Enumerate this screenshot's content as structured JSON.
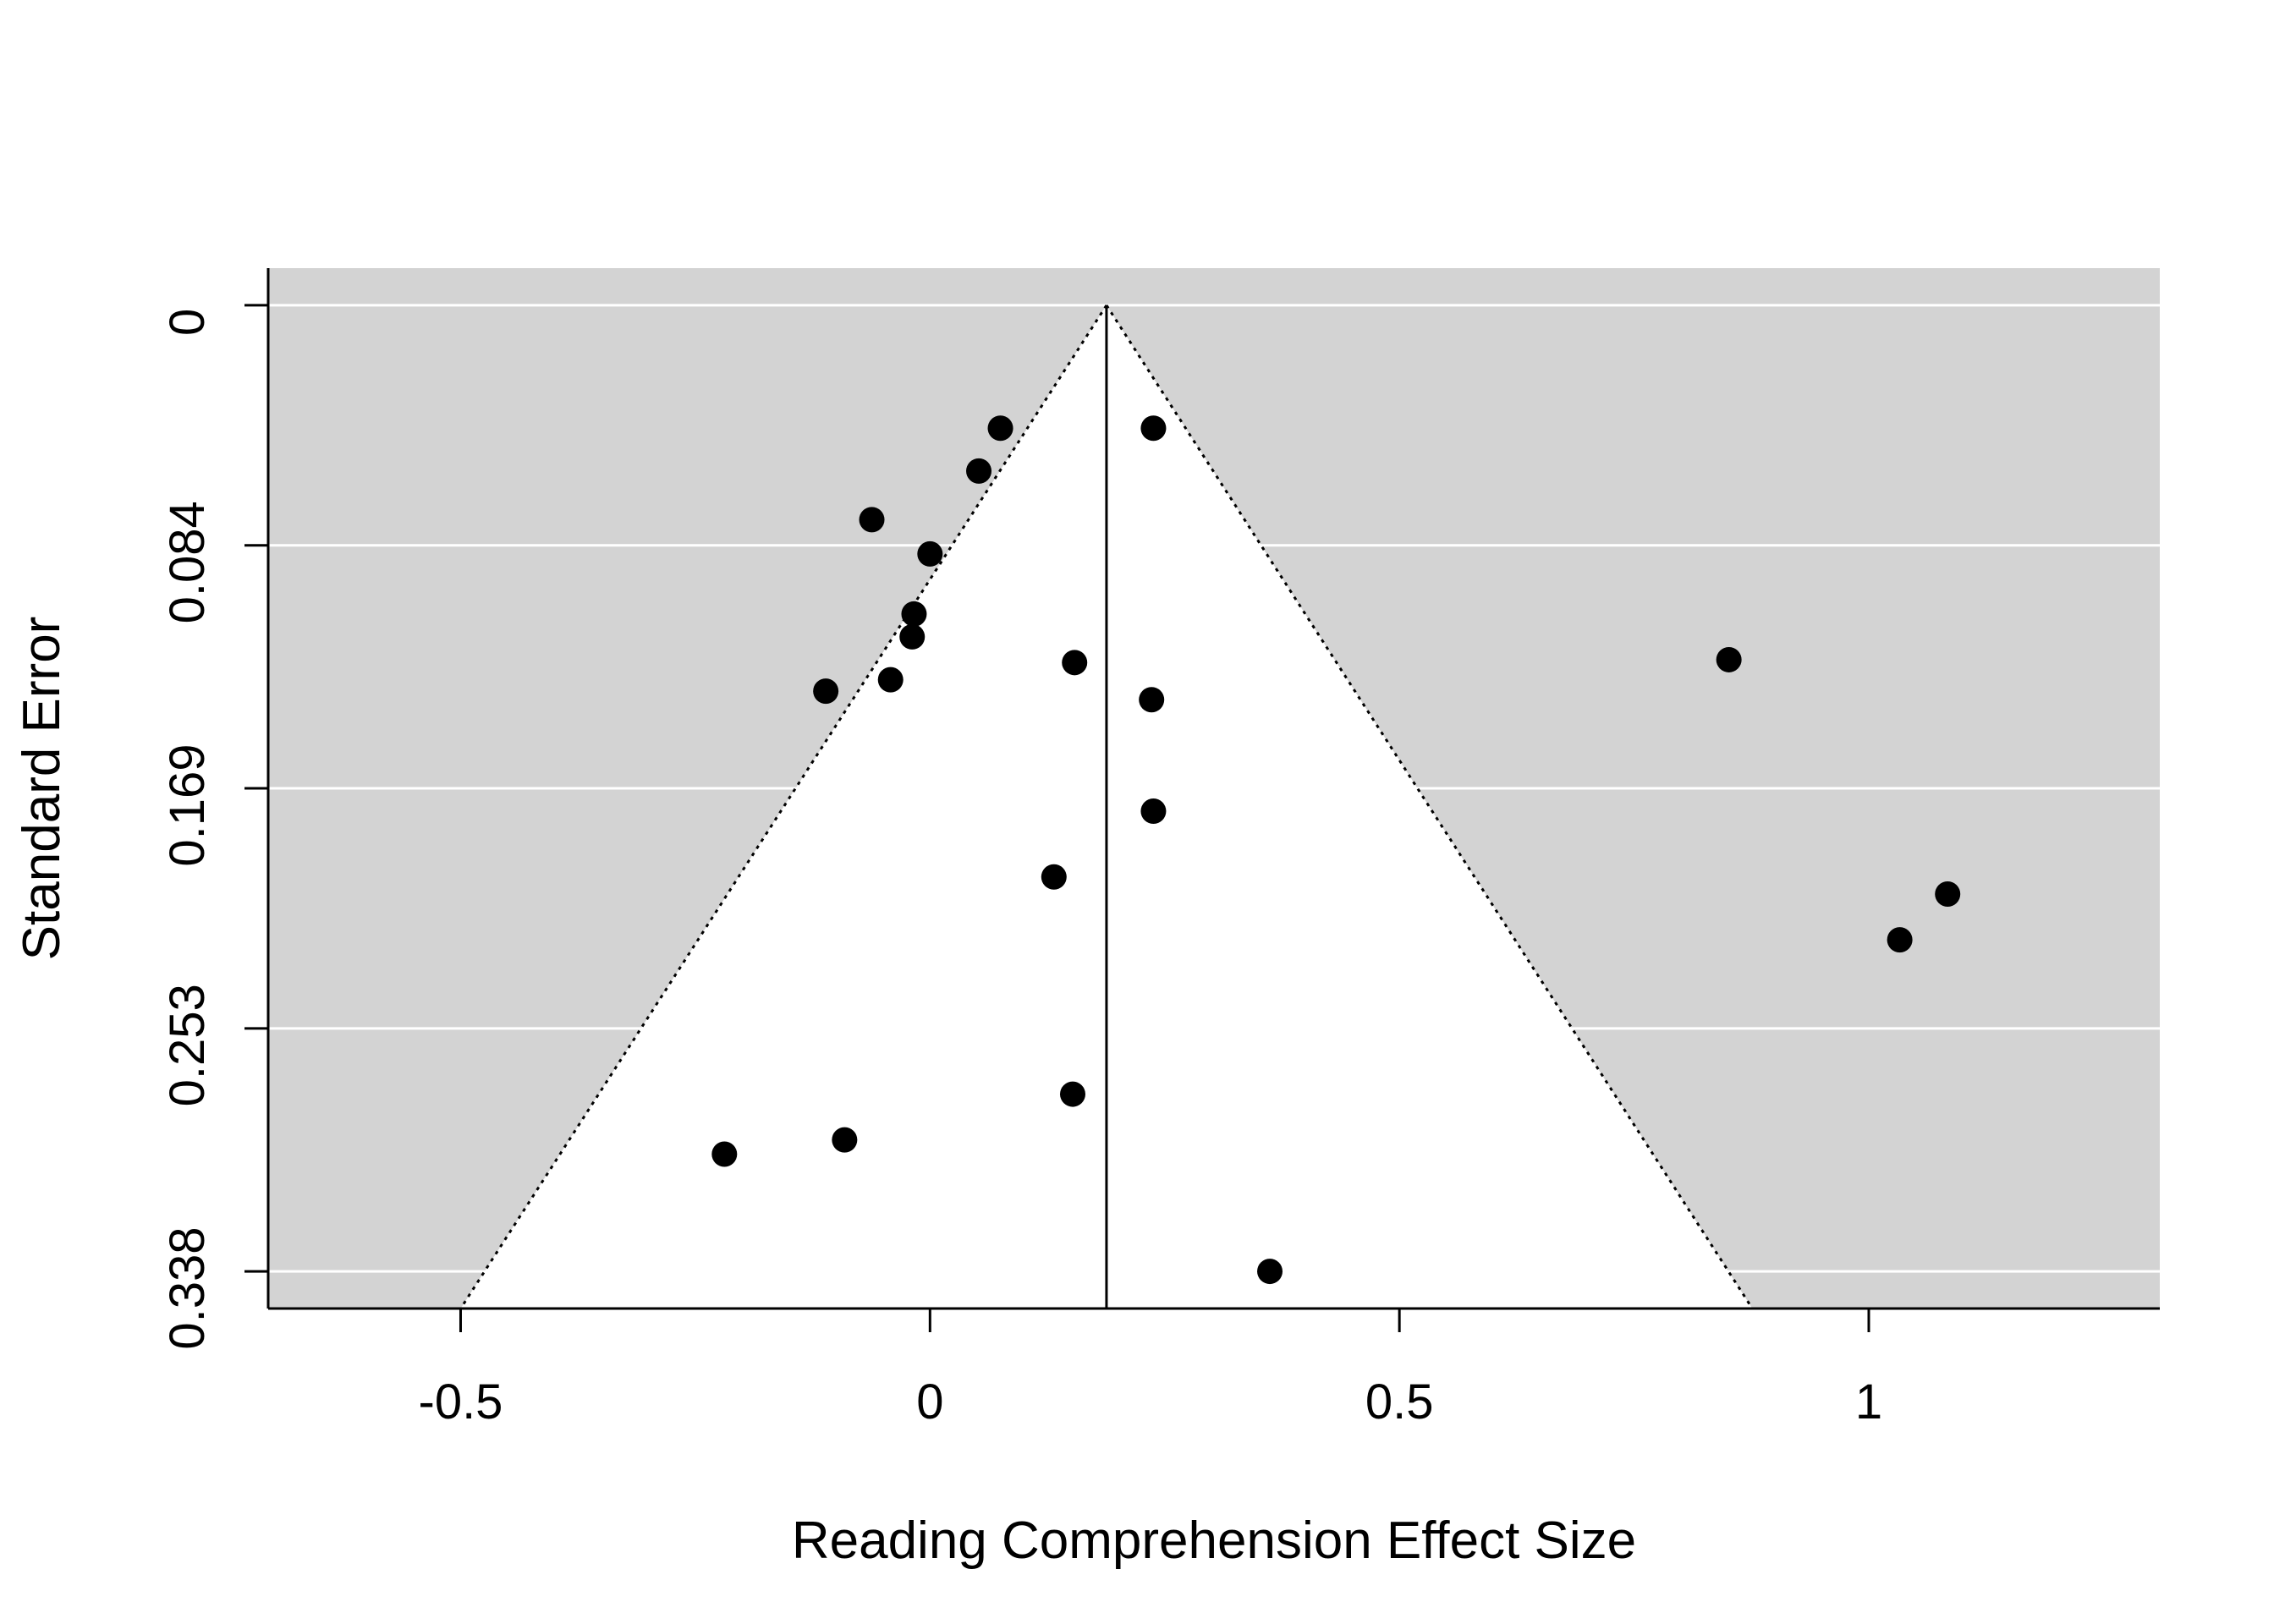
{
  "chart_data": {
    "type": "scatter",
    "title": "",
    "xlabel": "Reading Comprehension Effect Size",
    "ylabel": "Standard Error",
    "xlim": [
      -0.705,
      1.31
    ],
    "ylim": [
      0.351,
      -0.013
    ],
    "x_ticks": [
      -0.5,
      0,
      0.5,
      1
    ],
    "x_tick_labels": [
      "-0.5",
      "0",
      "0.5",
      "1"
    ],
    "y_ticks": [
      0,
      0.084,
      0.169,
      0.253,
      0.338
    ],
    "y_tick_labels": [
      "0",
      "0.084",
      "0.169",
      "0.253",
      "0.338"
    ],
    "y_reversed": true,
    "grid": "horizontal",
    "pooled_estimate": 0.188,
    "funnel_max_se": 0.351,
    "colors": {
      "panel_background": "#d3d3d3",
      "funnel_region": "#ffffff",
      "gridline": "#ffffff",
      "points": "#000000"
    },
    "points": [
      {
        "x": 0.075,
        "y": 0.043
      },
      {
        "x": 0.238,
        "y": 0.043
      },
      {
        "x": 0.052,
        "y": 0.058
      },
      {
        "x": -0.062,
        "y": 0.075
      },
      {
        "x": 0.0,
        "y": 0.087
      },
      {
        "x": -0.017,
        "y": 0.108
      },
      {
        "x": -0.019,
        "y": 0.116
      },
      {
        "x": 0.154,
        "y": 0.125
      },
      {
        "x": 0.851,
        "y": 0.124
      },
      {
        "x": -0.042,
        "y": 0.131
      },
      {
        "x": -0.111,
        "y": 0.135
      },
      {
        "x": 0.236,
        "y": 0.138
      },
      {
        "x": 0.238,
        "y": 0.177
      },
      {
        "x": 0.132,
        "y": 0.2
      },
      {
        "x": 1.084,
        "y": 0.206
      },
      {
        "x": 1.033,
        "y": 0.222
      },
      {
        "x": 0.152,
        "y": 0.276
      },
      {
        "x": -0.091,
        "y": 0.292
      },
      {
        "x": -0.219,
        "y": 0.297
      },
      {
        "x": 0.362,
        "y": 0.338
      }
    ]
  }
}
